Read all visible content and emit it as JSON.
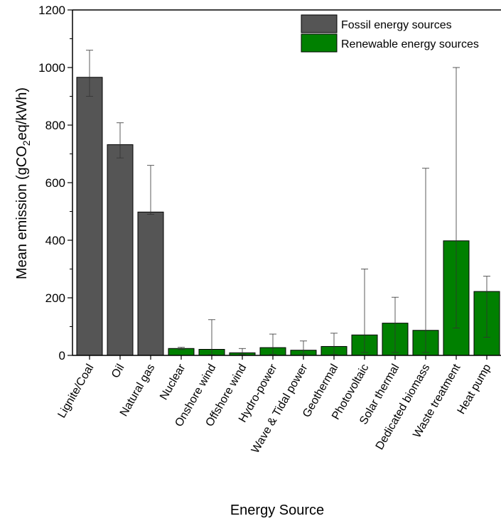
{
  "chart_data": {
    "type": "bar",
    "xlabel": "Energy Source",
    "ylabel_parts": {
      "pre": "Mean emission (gCO",
      "sub": "2",
      "post": "eq/kWh)"
    },
    "ylim": [
      0,
      1200
    ],
    "yticks": [
      "0",
      "200",
      "400",
      "600",
      "800",
      "1000",
      "1200"
    ],
    "ytick_values": [
      0,
      200,
      400,
      600,
      800,
      1000,
      1200
    ],
    "legend": [
      {
        "name": "Fossil energy sources",
        "color": "#555555"
      },
      {
        "name": "Renewable energy sources",
        "color": "#008000"
      }
    ],
    "legend_position": "top-right",
    "categories": [
      "Lignite/Coal",
      "Oil",
      "Natural gas",
      "Nuclear",
      "Onshore wind",
      "Offshore wind",
      "Hydro-power",
      "Wave & Tidal power",
      "Geothermal",
      "Photovoltaic",
      "Solar thermal",
      "Dedicated biomass",
      "Waste treatment",
      "Heat pump"
    ],
    "values": [
      966,
      732,
      498,
      24,
      21,
      9,
      27,
      18,
      31,
      71,
      112,
      87,
      398,
      222
    ],
    "error_low": [
      900,
      686,
      490,
      20,
      2,
      3,
      4,
      5,
      3,
      10,
      10,
      10,
      95,
      63
    ],
    "error_high": [
      1060,
      808,
      660,
      28,
      124,
      24,
      74,
      50,
      77,
      300,
      202,
      650,
      1000,
      275
    ],
    "group": [
      "fossil",
      "fossil",
      "fossil",
      "renewable",
      "renewable",
      "renewable",
      "renewable",
      "renewable",
      "renewable",
      "renewable",
      "renewable",
      "renewable",
      "renewable",
      "renewable"
    ]
  }
}
